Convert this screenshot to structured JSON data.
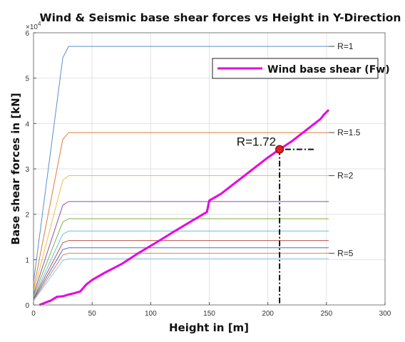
{
  "chart_data": {
    "type": "line",
    "title": "Wind & Seismic base shear forces vs Height in Y-Direction",
    "xlabel": "Height in [m]",
    "ylabel": "Base shear forces in [kN]",
    "xlim": [
      0,
      300
    ],
    "ylim": [
      0,
      60000
    ],
    "x_ticks": [
      0,
      50,
      100,
      150,
      200,
      250,
      300
    ],
    "y_ticks": [
      0,
      1,
      2,
      3,
      4,
      5,
      6
    ],
    "y_multiplier": "×10",
    "y_multiplier_exp": "4",
    "grid": true,
    "legend_position": "top-right",
    "seismic_series": [
      {
        "x": [
          0,
          25,
          30,
          252
        ],
        "y": [
          5000,
          54500,
          57000,
          57000
        ],
        "color": "#5b8fc9",
        "label": "R=1"
      },
      {
        "x": [
          0,
          25,
          30,
          252
        ],
        "y": [
          3500,
          36500,
          38000,
          38000
        ],
        "color": "#e07b39",
        "label": "R=1.5"
      },
      {
        "x": [
          0,
          25,
          30,
          252
        ],
        "y": [
          2800,
          27500,
          28500,
          28500
        ],
        "color": "#e6c24a",
        "label": "R=2"
      },
      {
        "x": [
          0,
          25,
          30,
          252
        ],
        "y": [
          2300,
          22000,
          22800,
          22800
        ],
        "color": "#8a4fb5",
        "label": ""
      },
      {
        "x": [
          0,
          25,
          30,
          252
        ],
        "y": [
          1900,
          18300,
          19000,
          19000
        ],
        "color": "#7cb342",
        "label": ""
      },
      {
        "x": [
          0,
          25,
          30,
          252
        ],
        "y": [
          1600,
          15600,
          16300,
          16300
        ],
        "color": "#5fc3e4",
        "label": ""
      },
      {
        "x": [
          0,
          25,
          30,
          252
        ],
        "y": [
          1400,
          13700,
          14200,
          14200
        ],
        "color": "#c0504d",
        "label": ""
      },
      {
        "x": [
          0,
          25,
          30,
          252
        ],
        "y": [
          1200,
          12200,
          12600,
          12600
        ],
        "color": "#4a6fd1",
        "label": ""
      },
      {
        "x": [
          0,
          25,
          30,
          252
        ],
        "y": [
          1000,
          11000,
          11400,
          11400
        ],
        "color": "#d98a4b",
        "label": "R=5"
      },
      {
        "x": [
          0,
          25,
          30,
          252
        ],
        "y": [
          900,
          9800,
          10200,
          10200
        ],
        "color": "#8ec9e6",
        "label": ""
      }
    ],
    "wind_series": {
      "name": "Wind base shear (Fw)",
      "color": "#e600e6",
      "x": [
        5,
        10,
        15,
        20,
        25,
        30,
        35,
        40,
        45,
        50,
        60,
        75,
        90,
        105,
        120,
        135,
        148,
        150,
        160,
        175,
        190,
        200,
        210,
        220,
        230,
        240,
        245,
        248,
        252
      ],
      "y": [
        0,
        500,
        1000,
        1800,
        1900,
        2300,
        2600,
        3000,
        4500,
        5500,
        7000,
        9000,
        11500,
        13800,
        16200,
        18500,
        20500,
        23000,
        24500,
        27500,
        30500,
        32500,
        34300,
        36000,
        38000,
        40000,
        41000,
        42000,
        43000
      ]
    },
    "marker": {
      "x": 210,
      "y": 34300,
      "label": "R=1.72",
      "color": "#e02020"
    }
  }
}
